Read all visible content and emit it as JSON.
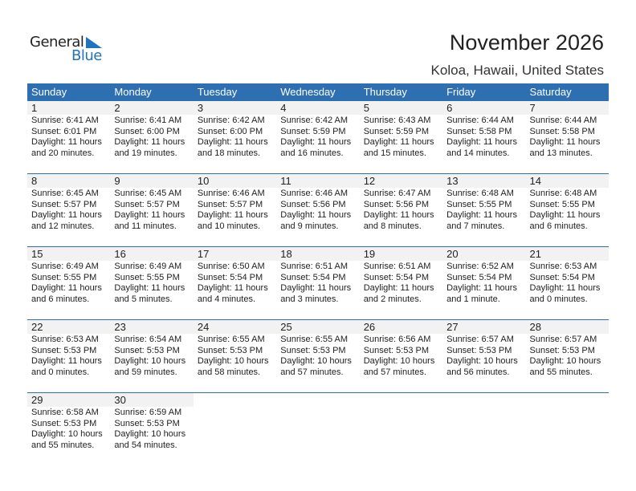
{
  "logo": {
    "line1": "General",
    "line2": "Blue"
  },
  "title": "November 2026",
  "location": "Koloa, Hawaii, United States",
  "colors": {
    "header": "#2e6fb1",
    "day_band": "#f2f2f2"
  },
  "weekdays": [
    "Sunday",
    "Monday",
    "Tuesday",
    "Wednesday",
    "Thursday",
    "Friday",
    "Saturday"
  ],
  "weeks": [
    [
      {
        "day": "1",
        "sunrise": "Sunrise: 6:41 AM",
        "sunset": "Sunset: 6:01 PM",
        "daylight1": "Daylight: 11 hours",
        "daylight2": "and 20 minutes."
      },
      {
        "day": "2",
        "sunrise": "Sunrise: 6:41 AM",
        "sunset": "Sunset: 6:00 PM",
        "daylight1": "Daylight: 11 hours",
        "daylight2": "and 19 minutes."
      },
      {
        "day": "3",
        "sunrise": "Sunrise: 6:42 AM",
        "sunset": "Sunset: 6:00 PM",
        "daylight1": "Daylight: 11 hours",
        "daylight2": "and 18 minutes."
      },
      {
        "day": "4",
        "sunrise": "Sunrise: 6:42 AM",
        "sunset": "Sunset: 5:59 PM",
        "daylight1": "Daylight: 11 hours",
        "daylight2": "and 16 minutes."
      },
      {
        "day": "5",
        "sunrise": "Sunrise: 6:43 AM",
        "sunset": "Sunset: 5:59 PM",
        "daylight1": "Daylight: 11 hours",
        "daylight2": "and 15 minutes."
      },
      {
        "day": "6",
        "sunrise": "Sunrise: 6:44 AM",
        "sunset": "Sunset: 5:58 PM",
        "daylight1": "Daylight: 11 hours",
        "daylight2": "and 14 minutes."
      },
      {
        "day": "7",
        "sunrise": "Sunrise: 6:44 AM",
        "sunset": "Sunset: 5:58 PM",
        "daylight1": "Daylight: 11 hours",
        "daylight2": "and 13 minutes."
      }
    ],
    [
      {
        "day": "8",
        "sunrise": "Sunrise: 6:45 AM",
        "sunset": "Sunset: 5:57 PM",
        "daylight1": "Daylight: 11 hours",
        "daylight2": "and 12 minutes."
      },
      {
        "day": "9",
        "sunrise": "Sunrise: 6:45 AM",
        "sunset": "Sunset: 5:57 PM",
        "daylight1": "Daylight: 11 hours",
        "daylight2": "and 11 minutes."
      },
      {
        "day": "10",
        "sunrise": "Sunrise: 6:46 AM",
        "sunset": "Sunset: 5:57 PM",
        "daylight1": "Daylight: 11 hours",
        "daylight2": "and 10 minutes."
      },
      {
        "day": "11",
        "sunrise": "Sunrise: 6:46 AM",
        "sunset": "Sunset: 5:56 PM",
        "daylight1": "Daylight: 11 hours",
        "daylight2": "and 9 minutes."
      },
      {
        "day": "12",
        "sunrise": "Sunrise: 6:47 AM",
        "sunset": "Sunset: 5:56 PM",
        "daylight1": "Daylight: 11 hours",
        "daylight2": "and 8 minutes."
      },
      {
        "day": "13",
        "sunrise": "Sunrise: 6:48 AM",
        "sunset": "Sunset: 5:55 PM",
        "daylight1": "Daylight: 11 hours",
        "daylight2": "and 7 minutes."
      },
      {
        "day": "14",
        "sunrise": "Sunrise: 6:48 AM",
        "sunset": "Sunset: 5:55 PM",
        "daylight1": "Daylight: 11 hours",
        "daylight2": "and 6 minutes."
      }
    ],
    [
      {
        "day": "15",
        "sunrise": "Sunrise: 6:49 AM",
        "sunset": "Sunset: 5:55 PM",
        "daylight1": "Daylight: 11 hours",
        "daylight2": "and 6 minutes."
      },
      {
        "day": "16",
        "sunrise": "Sunrise: 6:49 AM",
        "sunset": "Sunset: 5:55 PM",
        "daylight1": "Daylight: 11 hours",
        "daylight2": "and 5 minutes."
      },
      {
        "day": "17",
        "sunrise": "Sunrise: 6:50 AM",
        "sunset": "Sunset: 5:54 PM",
        "daylight1": "Daylight: 11 hours",
        "daylight2": "and 4 minutes."
      },
      {
        "day": "18",
        "sunrise": "Sunrise: 6:51 AM",
        "sunset": "Sunset: 5:54 PM",
        "daylight1": "Daylight: 11 hours",
        "daylight2": "and 3 minutes."
      },
      {
        "day": "19",
        "sunrise": "Sunrise: 6:51 AM",
        "sunset": "Sunset: 5:54 PM",
        "daylight1": "Daylight: 11 hours",
        "daylight2": "and 2 minutes."
      },
      {
        "day": "20",
        "sunrise": "Sunrise: 6:52 AM",
        "sunset": "Sunset: 5:54 PM",
        "daylight1": "Daylight: 11 hours",
        "daylight2": "and 1 minute."
      },
      {
        "day": "21",
        "sunrise": "Sunrise: 6:53 AM",
        "sunset": "Sunset: 5:54 PM",
        "daylight1": "Daylight: 11 hours",
        "daylight2": "and 0 minutes."
      }
    ],
    [
      {
        "day": "22",
        "sunrise": "Sunrise: 6:53 AM",
        "sunset": "Sunset: 5:53 PM",
        "daylight1": "Daylight: 11 hours",
        "daylight2": "and 0 minutes."
      },
      {
        "day": "23",
        "sunrise": "Sunrise: 6:54 AM",
        "sunset": "Sunset: 5:53 PM",
        "daylight1": "Daylight: 10 hours",
        "daylight2": "and 59 minutes."
      },
      {
        "day": "24",
        "sunrise": "Sunrise: 6:55 AM",
        "sunset": "Sunset: 5:53 PM",
        "daylight1": "Daylight: 10 hours",
        "daylight2": "and 58 minutes."
      },
      {
        "day": "25",
        "sunrise": "Sunrise: 6:55 AM",
        "sunset": "Sunset: 5:53 PM",
        "daylight1": "Daylight: 10 hours",
        "daylight2": "and 57 minutes."
      },
      {
        "day": "26",
        "sunrise": "Sunrise: 6:56 AM",
        "sunset": "Sunset: 5:53 PM",
        "daylight1": "Daylight: 10 hours",
        "daylight2": "and 57 minutes."
      },
      {
        "day": "27",
        "sunrise": "Sunrise: 6:57 AM",
        "sunset": "Sunset: 5:53 PM",
        "daylight1": "Daylight: 10 hours",
        "daylight2": "and 56 minutes."
      },
      {
        "day": "28",
        "sunrise": "Sunrise: 6:57 AM",
        "sunset": "Sunset: 5:53 PM",
        "daylight1": "Daylight: 10 hours",
        "daylight2": "and 55 minutes."
      }
    ],
    [
      {
        "day": "29",
        "sunrise": "Sunrise: 6:58 AM",
        "sunset": "Sunset: 5:53 PM",
        "daylight1": "Daylight: 10 hours",
        "daylight2": "and 55 minutes."
      },
      {
        "day": "30",
        "sunrise": "Sunrise: 6:59 AM",
        "sunset": "Sunset: 5:53 PM",
        "daylight1": "Daylight: 10 hours",
        "daylight2": "and 54 minutes."
      },
      null,
      null,
      null,
      null,
      null
    ]
  ]
}
